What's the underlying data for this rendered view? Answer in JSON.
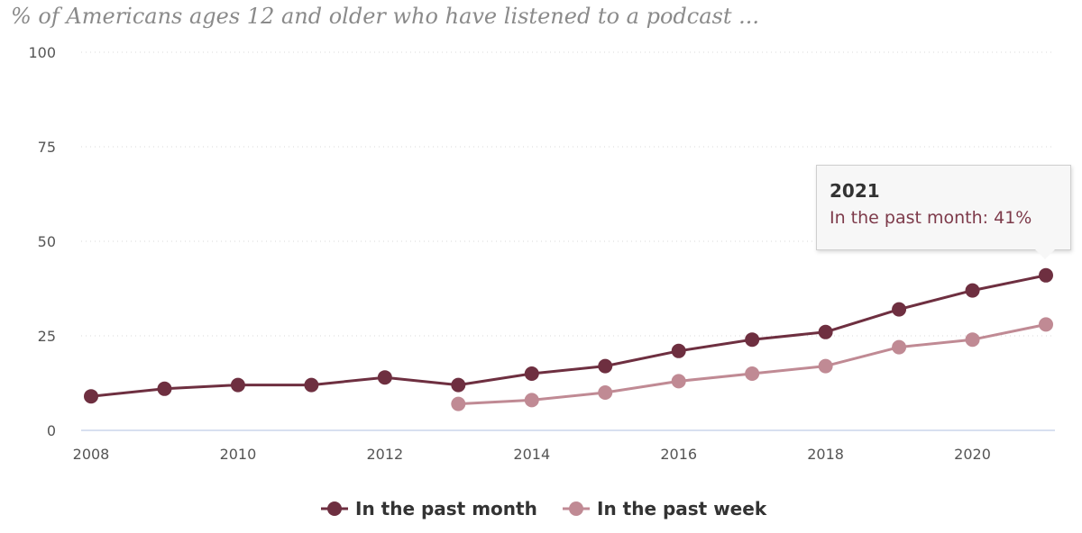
{
  "chart_data": {
    "type": "line",
    "title": "% of Americans ages 12 and older who have listened to a podcast ...",
    "xlabel": "",
    "ylabel": "",
    "ylim": [
      0,
      100
    ],
    "xlim": [
      2008,
      2021
    ],
    "yticks": [
      "0",
      "25",
      "50",
      "75",
      "100"
    ],
    "xticks": [
      "2008",
      "2010",
      "2012",
      "2014",
      "2016",
      "2018",
      "2020"
    ],
    "grid": true,
    "legend_position": "bottom",
    "series": [
      {
        "name": "In the past month",
        "color": "#6e2f40",
        "x": [
          2008,
          2009,
          2010,
          2011,
          2012,
          2013,
          2014,
          2015,
          2016,
          2017,
          2018,
          2019,
          2020,
          2021
        ],
        "values": [
          9,
          11,
          12,
          12,
          14,
          12,
          15,
          17,
          21,
          24,
          26,
          32,
          37,
          41
        ]
      },
      {
        "name": "In the past week",
        "color": "#c08a94",
        "x": [
          2013,
          2014,
          2015,
          2016,
          2017,
          2018,
          2019,
          2020,
          2021
        ],
        "values": [
          7,
          8,
          10,
          13,
          15,
          17,
          22,
          24,
          28
        ]
      }
    ],
    "tooltip": {
      "year": "2021",
      "text": "In the past month: 41%"
    }
  }
}
